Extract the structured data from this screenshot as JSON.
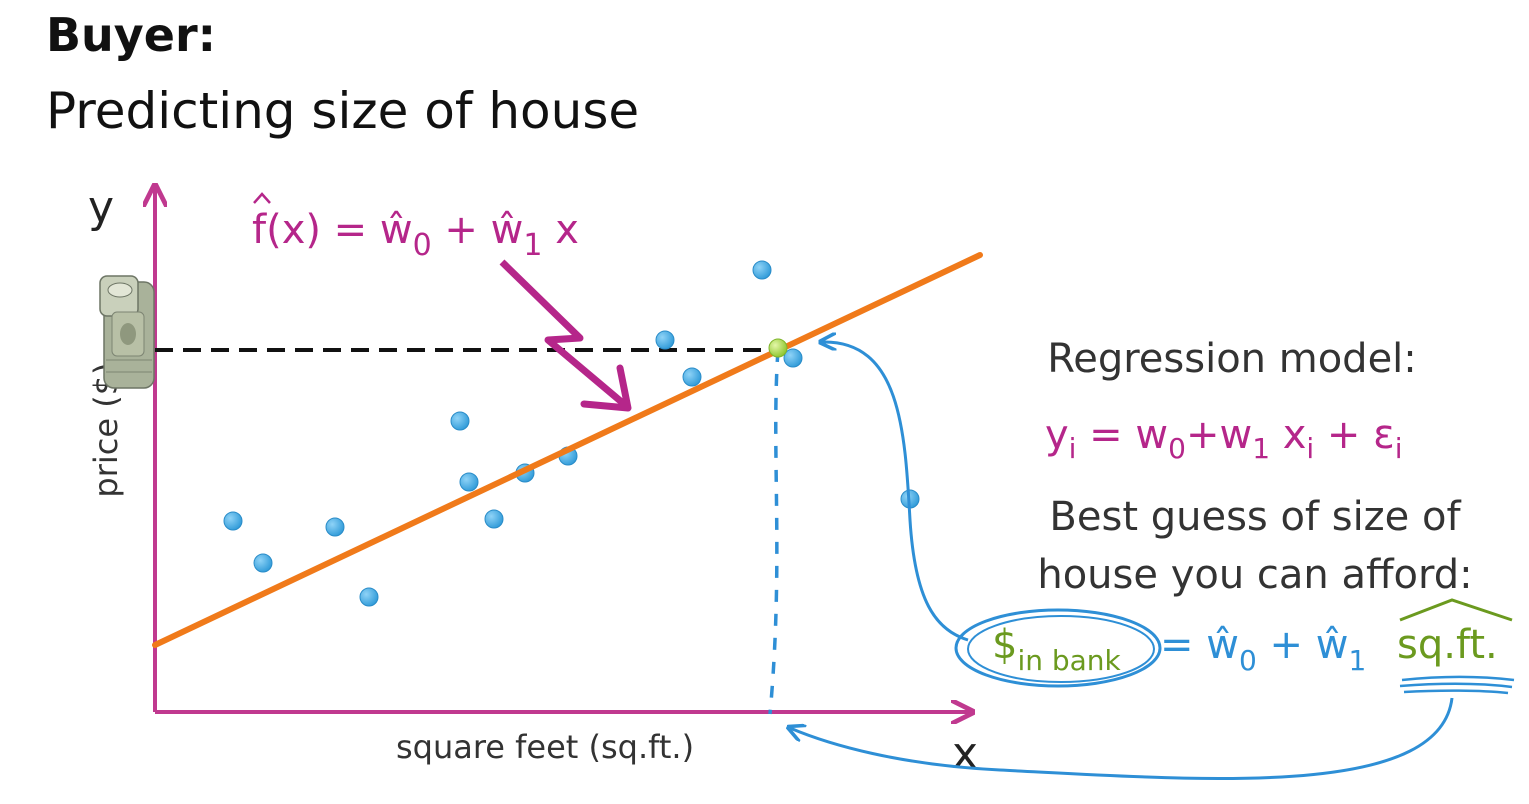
{
  "header": {
    "title": "Buyer:",
    "subtitle": "Predicting size of house"
  },
  "plot": {
    "x_axis_letter": "x",
    "y_axis_letter": "y",
    "x_label": "square feet (sq.ft.)",
    "y_label": "price ($)",
    "fitted_line_label": {
      "prefix": "f(x) = ŵ",
      "sub0": "0",
      "mid": " + ŵ",
      "sub1": "1",
      "suffix": " x"
    }
  },
  "model_panel": {
    "title": "Regression model:",
    "equation": {
      "y": "y",
      "sub_i1": "i",
      "eq": " = w",
      "sub_0": "0",
      "plus_w": "+w",
      "sub_1": "1",
      "x": " x",
      "sub_i2": "i",
      "plus_eps": " + ε",
      "sub_i3": "i"
    },
    "guess_line1": "Best guess of size of",
    "guess_line2": "house you can afford:",
    "inverse": {
      "dollar": "$",
      "dollar_sub": "in bank",
      "eq": "= ŵ",
      "sub_0": "0",
      "plus": " + ŵ",
      "sub_1": "1",
      "sqft": "sq.ft."
    }
  },
  "colors": {
    "axis": "#c0398f",
    "fit_line": "#f07a1a",
    "points": "#3aa6e3",
    "highlight_point": "#a6d83c",
    "annotation": "#2e8fd6",
    "sqft_green": "#6b9a1f",
    "text": "#333333"
  }
}
